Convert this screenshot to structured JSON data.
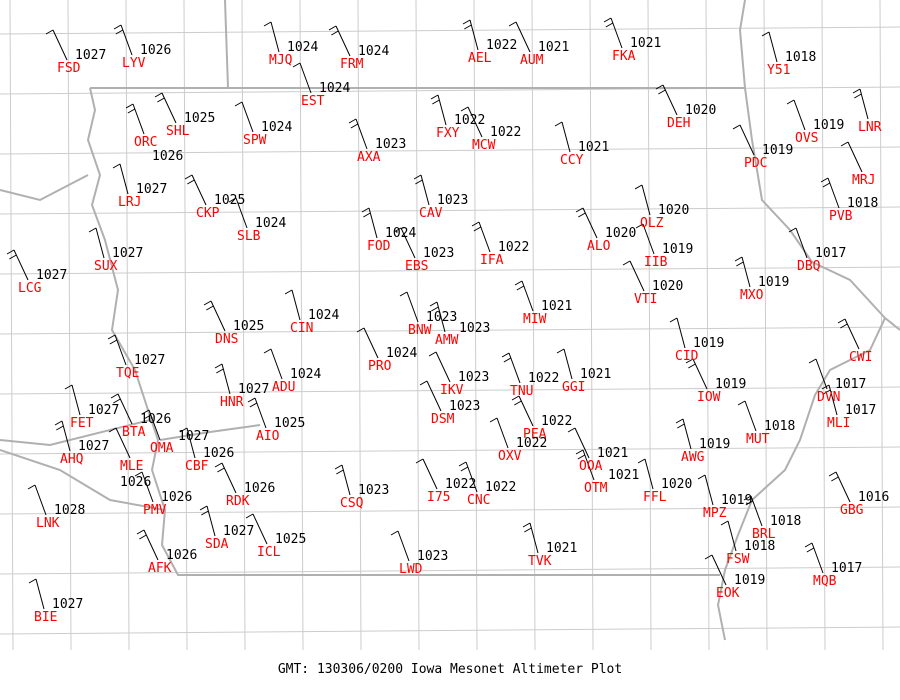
{
  "title": "GMT: 130306/0200 Iowa Mesonet Altimeter Plot",
  "colors": {
    "station_id": "#ff0000",
    "pressure": "#000000",
    "county_lines": "#cccccc",
    "state_lines": "#b0b0b0",
    "wind_barbs": "#000000"
  },
  "stations": [
    {
      "id": "FSD",
      "altimeter": "1027"
    },
    {
      "id": "LYV",
      "altimeter": "1026"
    },
    {
      "id": "MJQ",
      "altimeter": "1024"
    },
    {
      "id": "FRM",
      "altimeter": "1024"
    },
    {
      "id": "EST",
      "altimeter": "1024"
    },
    {
      "id": "AEL",
      "altimeter": "1022"
    },
    {
      "id": "AUM",
      "altimeter": "1021"
    },
    {
      "id": "FKA",
      "altimeter": "1021"
    },
    {
      "id": "Y51",
      "altimeter": "1018"
    },
    {
      "id": "SHL",
      "altimeter": "1025"
    },
    {
      "id": "SPW",
      "altimeter": "1024"
    },
    {
      "id": "FXY",
      "altimeter": "1022"
    },
    {
      "id": "MCW",
      "altimeter": "1022"
    },
    {
      "id": "AXA",
      "altimeter": "1023"
    },
    {
      "id": "CCY",
      "altimeter": "1021"
    },
    {
      "id": "DEH",
      "altimeter": "1020"
    },
    {
      "id": "OVS",
      "altimeter": "1019"
    },
    {
      "id": "LNR",
      "altimeter": ""
    },
    {
      "id": "PDC",
      "altimeter": "1019"
    },
    {
      "id": "ORC",
      "altimeter": "1026"
    },
    {
      "id": "LRJ",
      "altimeter": "1027"
    },
    {
      "id": "CKP",
      "altimeter": "1025"
    },
    {
      "id": "SLB",
      "altimeter": "1024"
    },
    {
      "id": "CAV",
      "altimeter": "1023"
    },
    {
      "id": "MRJ",
      "altimeter": ""
    },
    {
      "id": "PVB",
      "altimeter": "1018"
    },
    {
      "id": "OLZ",
      "altimeter": "1020"
    },
    {
      "id": "ALO",
      "altimeter": "1020"
    },
    {
      "id": "IIB",
      "altimeter": "1019"
    },
    {
      "id": "FOD",
      "altimeter": "1024"
    },
    {
      "id": "EBS",
      "altimeter": "1023"
    },
    {
      "id": "IFA",
      "altimeter": "1022"
    },
    {
      "id": "SUX",
      "altimeter": "1027"
    },
    {
      "id": "LCG",
      "altimeter": "1027"
    },
    {
      "id": "DBQ",
      "altimeter": "1017"
    },
    {
      "id": "MXO",
      "altimeter": "1019"
    },
    {
      "id": "VTI",
      "altimeter": "1020"
    },
    {
      "id": "MIW",
      "altimeter": "1021"
    },
    {
      "id": "CIN",
      "altimeter": "1024"
    },
    {
      "id": "DNS",
      "altimeter": "1025"
    },
    {
      "id": "BNW",
      "altimeter": "1023"
    },
    {
      "id": "AMW",
      "altimeter": "1023"
    },
    {
      "id": "PRO",
      "altimeter": "1024"
    },
    {
      "id": "TQE",
      "altimeter": "1027"
    },
    {
      "id": "CID",
      "altimeter": "1019"
    },
    {
      "id": "CWI",
      "altimeter": ""
    },
    {
      "id": "ADU",
      "altimeter": "1024"
    },
    {
      "id": "HNR",
      "altimeter": "1027"
    },
    {
      "id": "IKV",
      "altimeter": "1023"
    },
    {
      "id": "TNU",
      "altimeter": "1022"
    },
    {
      "id": "GGI",
      "altimeter": "1021"
    },
    {
      "id": "IOW",
      "altimeter": "1019"
    },
    {
      "id": "DVN",
      "altimeter": "1017"
    },
    {
      "id": "MLI",
      "altimeter": "1017"
    },
    {
      "id": "DSM",
      "altimeter": "1023"
    },
    {
      "id": "AIO",
      "altimeter": "1025"
    },
    {
      "id": "FET",
      "altimeter": "1027"
    },
    {
      "id": "BTA",
      "altimeter": "1026"
    },
    {
      "id": "MUT",
      "altimeter": "1018"
    },
    {
      "id": "AHQ",
      "altimeter": "1027"
    },
    {
      "id": "MLE",
      "altimeter": "1026"
    },
    {
      "id": "OMA",
      "altimeter": "1027"
    },
    {
      "id": "CBF",
      "altimeter": "1026"
    },
    {
      "id": "PEA",
      "altimeter": "1022"
    },
    {
      "id": "OXV",
      "altimeter": "1022"
    },
    {
      "id": "AWG",
      "altimeter": "1019"
    },
    {
      "id": "OOA",
      "altimeter": "1021"
    },
    {
      "id": "OTM",
      "altimeter": "1021"
    },
    {
      "id": "FFL",
      "altimeter": "1020"
    },
    {
      "id": "RDK",
      "altimeter": "1026"
    },
    {
      "id": "PMV",
      "altimeter": "1026"
    },
    {
      "id": "CSQ",
      "altimeter": "1023"
    },
    {
      "id": "I75",
      "altimeter": "1022"
    },
    {
      "id": "CNC",
      "altimeter": "1022"
    },
    {
      "id": "MPZ",
      "altimeter": "1019"
    },
    {
      "id": "GBG",
      "altimeter": "1016"
    },
    {
      "id": "LNK",
      "altimeter": "1028"
    },
    {
      "id": "SDA",
      "altimeter": "1027"
    },
    {
      "id": "ICL",
      "altimeter": "1025"
    },
    {
      "id": "BRL",
      "altimeter": "1018"
    },
    {
      "id": "FSW",
      "altimeter": "1018"
    },
    {
      "id": "AFK",
      "altimeter": "1026"
    },
    {
      "id": "LWD",
      "altimeter": "1023"
    },
    {
      "id": "TVK",
      "altimeter": "1021"
    },
    {
      "id": "EOK",
      "altimeter": "1019"
    },
    {
      "id": "MQB",
      "altimeter": "1017"
    },
    {
      "id": "BIE",
      "altimeter": "1027"
    }
  ]
}
